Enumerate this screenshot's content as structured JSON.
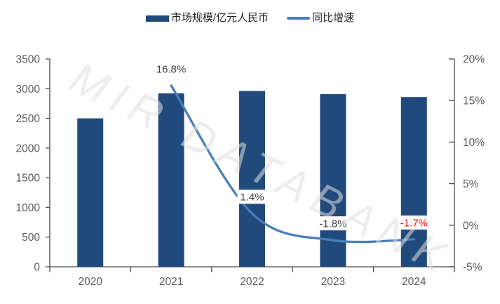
{
  "watermark": {
    "text": "MIR DATABANK"
  },
  "colors": {
    "background": "#FFFFFF",
    "bar": "#204A7B",
    "line": "#4A7EBD",
    "axis_line": "#4A4A4A",
    "tick_label": "#595959",
    "data_label": "#3F3F3F",
    "data_label_negative_2024": "#EE1111",
    "data_label_bg": "#FFFFFF",
    "legend_text": "#262626",
    "watermark": "#DFDFDF"
  },
  "chart_data": {
    "type": "bar",
    "subtype": "bar+line combo",
    "categories": [
      "2020",
      "2021",
      "2022",
      "2023",
      "2024"
    ],
    "series": [
      {
        "name": "市场规模/亿元人民币",
        "type": "bar",
        "axis": "left",
        "color": "#204A7B",
        "values": [
          2500,
          2920,
          2961,
          2908,
          2859
        ]
      },
      {
        "name": "同比增速",
        "type": "line",
        "axis": "right",
        "color": "#4A7EBD",
        "smooth": true,
        "values": [
          null,
          16.8,
          1.4,
          -1.8,
          -1.7
        ],
        "point_labels": [
          null,
          "16.8%",
          "1.4%",
          "-1.8%",
          "-1.7%"
        ],
        "point_label_colors": [
          null,
          "#3F3F3F",
          "#3F3F3F",
          "#3F3F3F",
          "#EE1111"
        ]
      }
    ],
    "left_axis": {
      "min": 0,
      "max": 3500,
      "tick_step": 500,
      "ticks": [
        "0",
        "500",
        "1000",
        "1500",
        "2000",
        "2500",
        "3000",
        "3500"
      ]
    },
    "right_axis": {
      "min": -5,
      "max": 20,
      "tick_step": 5,
      "ticks": [
        "-5%",
        "0%",
        "5%",
        "10%",
        "15%",
        "20%"
      ]
    },
    "grid": false,
    "legend_position": "top",
    "title": ""
  }
}
